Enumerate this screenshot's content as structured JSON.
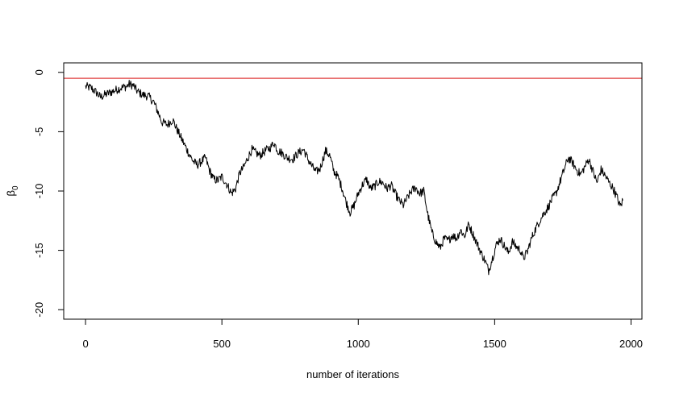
{
  "chart_data": {
    "type": "line",
    "title": "",
    "xlabel": "number of iterations",
    "ylabel": "β",
    "ylabel_subscript": "0",
    "xlim": [
      -80,
      2040
    ],
    "ylim": [
      -20.8,
      0.8
    ],
    "x_ticks": [
      0,
      500,
      1000,
      1500,
      2000
    ],
    "x_tick_labels": [
      "0",
      "500",
      "1000",
      "1500",
      "2000"
    ],
    "y_ticks": [
      0,
      -5,
      -10,
      -15,
      -20
    ],
    "y_tick_labels": [
      "0",
      "-5",
      "-10",
      "-15",
      "-20"
    ],
    "grid": false,
    "reference_line": {
      "y": -0.5,
      "color": "#e04040"
    },
    "series": [
      {
        "color": "#000000",
        "points": [
          [
            0,
            -1.2
          ],
          [
            20,
            -1.3
          ],
          [
            40,
            -1.7
          ],
          [
            55,
            -2.1
          ],
          [
            70,
            -1.9
          ],
          [
            90,
            -1.7
          ],
          [
            110,
            -1.5
          ],
          [
            130,
            -1.3
          ],
          [
            150,
            -1.2
          ],
          [
            160,
            -1.0
          ],
          [
            175,
            -1.1
          ],
          [
            190,
            -1.6
          ],
          [
            210,
            -1.9
          ],
          [
            230,
            -2.0
          ],
          [
            250,
            -2.5
          ],
          [
            265,
            -3.3
          ],
          [
            280,
            -4.2
          ],
          [
            300,
            -4.4
          ],
          [
            320,
            -4.0
          ],
          [
            335,
            -4.8
          ],
          [
            350,
            -5.5
          ],
          [
            365,
            -6.2
          ],
          [
            380,
            -6.9
          ],
          [
            395,
            -7.5
          ],
          [
            410,
            -7.8
          ],
          [
            425,
            -7.5
          ],
          [
            440,
            -7.2
          ],
          [
            455,
            -8.3
          ],
          [
            470,
            -9.0
          ],
          [
            485,
            -9.1
          ],
          [
            500,
            -8.8
          ],
          [
            520,
            -9.5
          ],
          [
            535,
            -10.2
          ],
          [
            550,
            -9.8
          ],
          [
            565,
            -8.5
          ],
          [
            580,
            -8.0
          ],
          [
            595,
            -7.2
          ],
          [
            610,
            -6.5
          ],
          [
            625,
            -6.8
          ],
          [
            640,
            -7.0
          ],
          [
            660,
            -6.6
          ],
          [
            680,
            -6.3
          ],
          [
            690,
            -5.9
          ],
          [
            705,
            -6.6
          ],
          [
            720,
            -6.8
          ],
          [
            740,
            -7.2
          ],
          [
            760,
            -7.3
          ],
          [
            780,
            -6.8
          ],
          [
            800,
            -6.5
          ],
          [
            815,
            -7.3
          ],
          [
            830,
            -7.9
          ],
          [
            845,
            -8.4
          ],
          [
            860,
            -8.1
          ],
          [
            880,
            -6.6
          ],
          [
            895,
            -7.0
          ],
          [
            910,
            -8.3
          ],
          [
            925,
            -8.8
          ],
          [
            940,
            -9.7
          ],
          [
            955,
            -10.9
          ],
          [
            970,
            -11.8
          ],
          [
            985,
            -11.2
          ],
          [
            1000,
            -10.2
          ],
          [
            1015,
            -9.5
          ],
          [
            1030,
            -9.0
          ],
          [
            1045,
            -9.8
          ],
          [
            1060,
            -9.6
          ],
          [
            1075,
            -9.2
          ],
          [
            1090,
            -9.3
          ],
          [
            1105,
            -9.8
          ],
          [
            1120,
            -9.5
          ],
          [
            1135,
            -10.2
          ],
          [
            1150,
            -10.8
          ],
          [
            1165,
            -11.2
          ],
          [
            1180,
            -10.6
          ],
          [
            1195,
            -10.0
          ],
          [
            1210,
            -9.7
          ],
          [
            1225,
            -10.2
          ],
          [
            1240,
            -10.0
          ],
          [
            1255,
            -12.0
          ],
          [
            1270,
            -13.5
          ],
          [
            1285,
            -14.3
          ],
          [
            1300,
            -14.8
          ],
          [
            1315,
            -14.0
          ],
          [
            1330,
            -14.2
          ],
          [
            1345,
            -13.7
          ],
          [
            1360,
            -14.0
          ],
          [
            1375,
            -13.3
          ],
          [
            1390,
            -13.8
          ],
          [
            1405,
            -12.8
          ],
          [
            1420,
            -13.6
          ],
          [
            1435,
            -14.4
          ],
          [
            1450,
            -15.2
          ],
          [
            1465,
            -15.9
          ],
          [
            1478,
            -16.7
          ],
          [
            1490,
            -15.8
          ],
          [
            1505,
            -14.6
          ],
          [
            1520,
            -14.0
          ],
          [
            1535,
            -14.6
          ],
          [
            1550,
            -15.2
          ],
          [
            1565,
            -14.3
          ],
          [
            1580,
            -14.7
          ],
          [
            1595,
            -15.0
          ],
          [
            1605,
            -15.7
          ],
          [
            1620,
            -15.1
          ],
          [
            1635,
            -14.0
          ],
          [
            1650,
            -13.2
          ],
          [
            1665,
            -12.5
          ],
          [
            1680,
            -11.9
          ],
          [
            1695,
            -11.4
          ],
          [
            1710,
            -10.7
          ],
          [
            1725,
            -10.2
          ],
          [
            1740,
            -9.2
          ],
          [
            1755,
            -8.2
          ],
          [
            1770,
            -7.2
          ],
          [
            1785,
            -7.6
          ],
          [
            1800,
            -8.2
          ],
          [
            1815,
            -8.6
          ],
          [
            1830,
            -8.0
          ],
          [
            1845,
            -7.3
          ],
          [
            1860,
            -8.3
          ],
          [
            1875,
            -9.3
          ],
          [
            1890,
            -8.2
          ],
          [
            1905,
            -8.7
          ],
          [
            1920,
            -9.3
          ],
          [
            1935,
            -9.8
          ],
          [
            1950,
            -10.6
          ],
          [
            1960,
            -11.3
          ],
          [
            1970,
            -10.8
          ]
        ]
      }
    ]
  }
}
